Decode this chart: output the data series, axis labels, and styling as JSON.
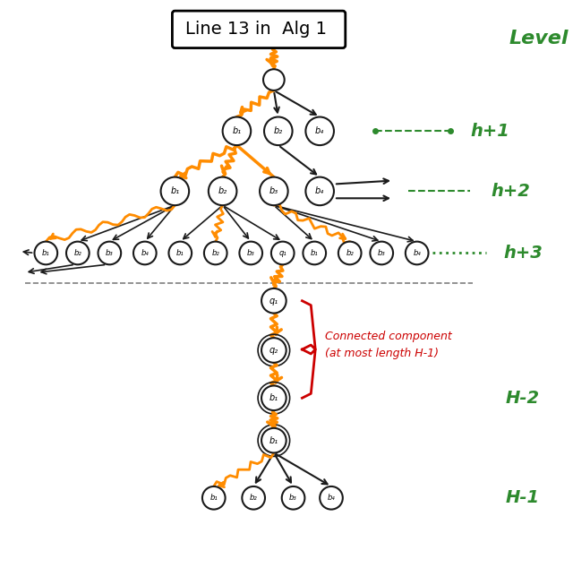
{
  "title": "Line 13 in  Alg 1",
  "level_label": "Level",
  "levels": {
    "h1": "h+1",
    "h2": "h+2",
    "h3": "h+3",
    "hm2": "H-2",
    "hm1": "H-1"
  },
  "connected_component_text": [
    "Connected component",
    "(at most length H-1)"
  ],
  "bg_color": "#FFFFFF",
  "node_color": "#FFFFFF",
  "node_edge_color": "#1a1a1a",
  "arrow_color": "#1a1a1a",
  "orange_color": "#FF8C00",
  "green_color": "#2d8a2d",
  "red_color": "#CC0000",
  "title_fontsize": 14,
  "level_fontsize": 14
}
